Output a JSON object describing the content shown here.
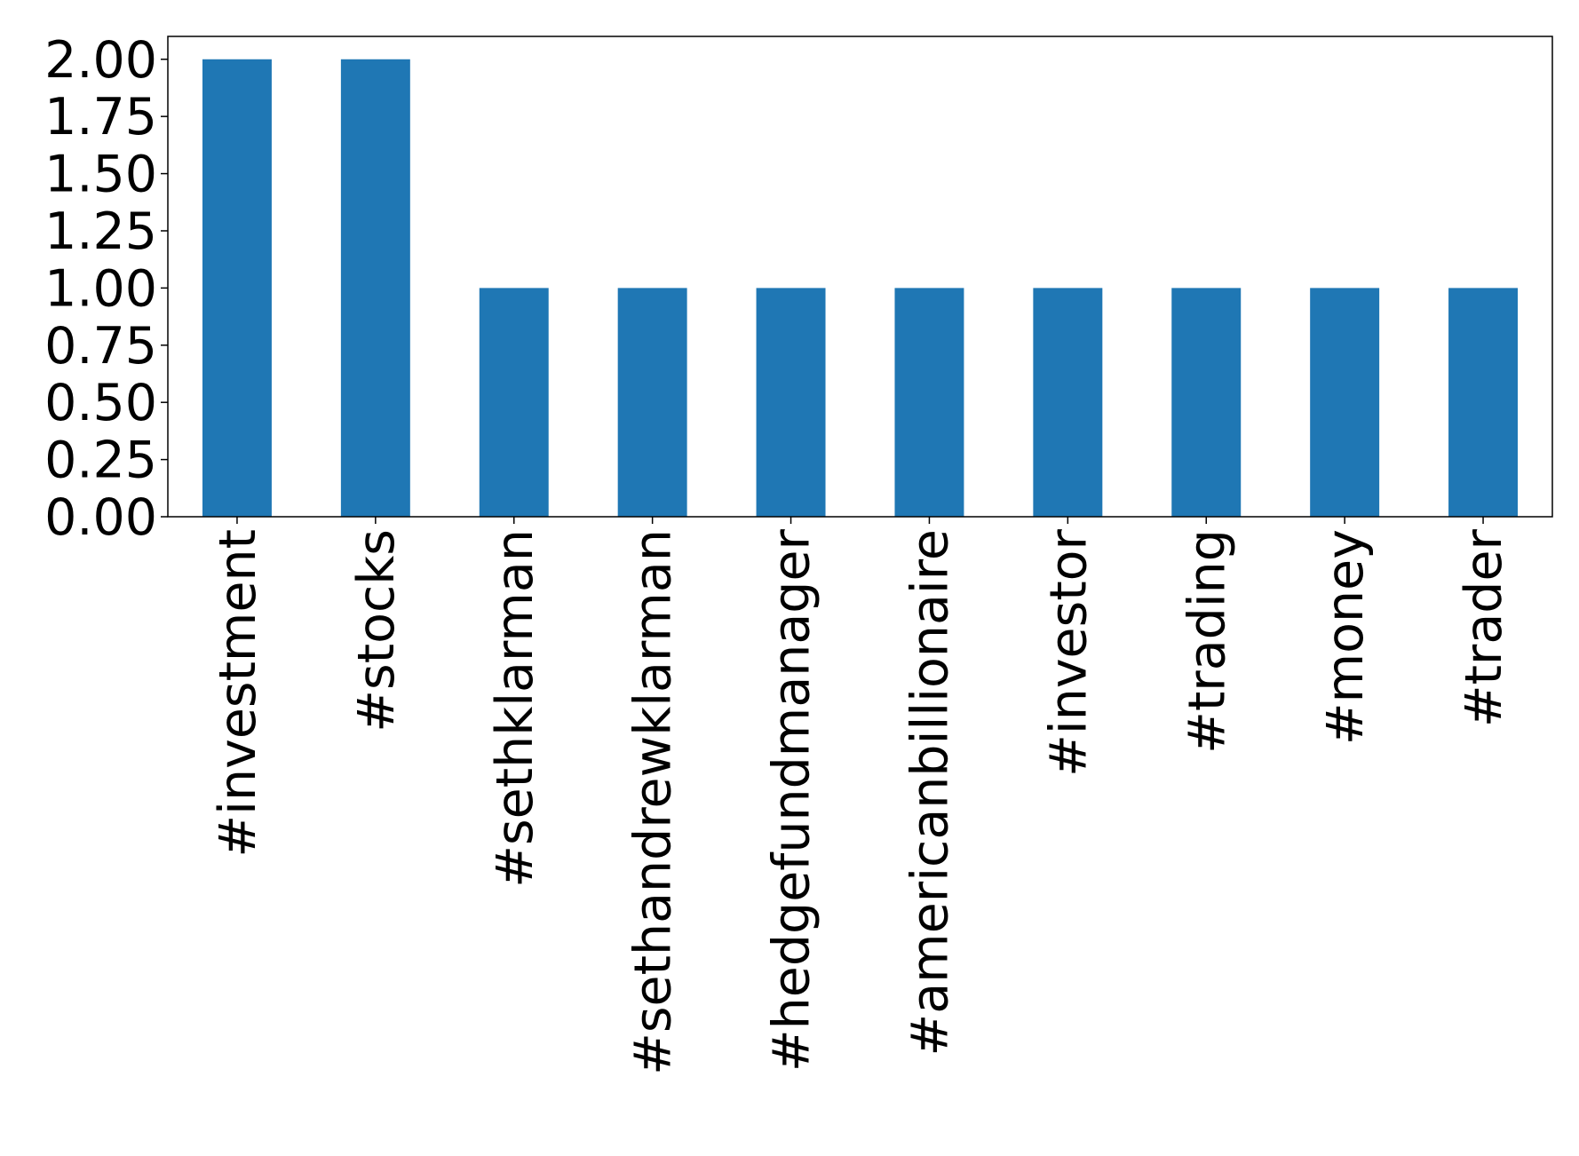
{
  "chart_data": {
    "type": "bar",
    "categories": [
      "#investment",
      "#stocks",
      "#sethklarman",
      "#sethandrewklarman",
      "#hedgefundmanager",
      "#americanbillionaire",
      "#investor",
      "#trading",
      "#money",
      "#trader"
    ],
    "values": [
      2,
      2,
      1,
      1,
      1,
      1,
      1,
      1,
      1,
      1
    ],
    "color": "#1f77b4",
    "ylim": [
      0,
      2.1
    ],
    "yticks": [
      {
        "value": 0,
        "label": "0.00"
      },
      0.25,
      {
        "value": 0.5,
        "label": "0.50"
      },
      0.75,
      {
        "value": 1,
        "label": "1.00"
      },
      1.25,
      {
        "value": 1.5,
        "label": "1.50"
      },
      1.75,
      {
        "value": 2,
        "label": "2.00"
      }
    ],
    "grid": false
  }
}
